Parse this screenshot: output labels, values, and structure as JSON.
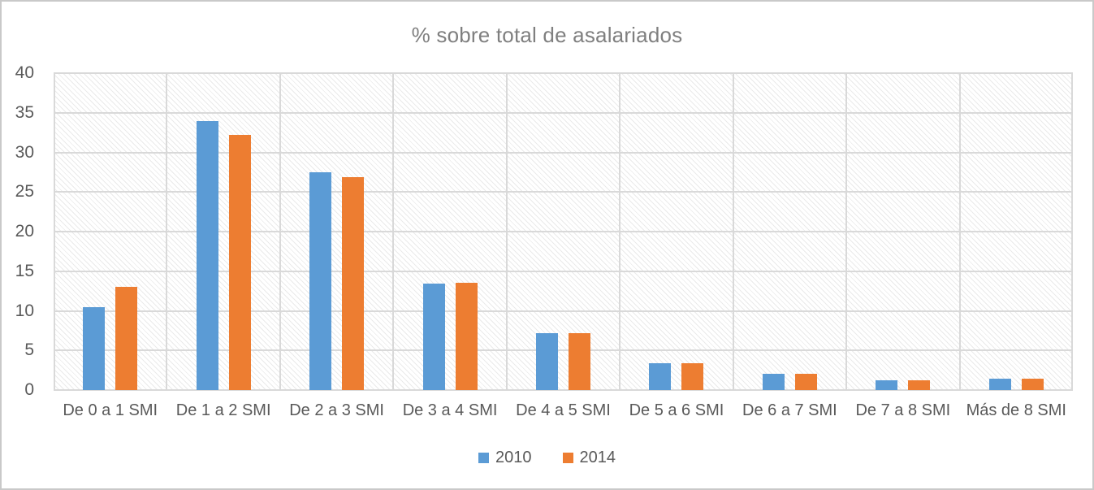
{
  "chart_data": {
    "type": "bar",
    "title": "% sobre total de asalariados",
    "categories": [
      "De 0 a 1 SMI",
      "De 1 a 2 SMI",
      "De 2 a 3 SMI",
      "De 3 a 4 SMI",
      "De 4 a 5 SMI",
      "De 5 a 6 SMI",
      "De 6 a 7 SMI",
      "De 7 a 8 SMI",
      "Más de 8 SMI"
    ],
    "series": [
      {
        "name": "2010",
        "color": "#5B9BD5",
        "values": [
          10.5,
          33.9,
          27.5,
          13.4,
          7.2,
          3.4,
          2.1,
          1.2,
          1.45
        ]
      },
      {
        "name": "2014",
        "color": "#ED7D31",
        "values": [
          13.0,
          32.2,
          26.9,
          13.5,
          7.2,
          3.4,
          2.1,
          1.2,
          1.45
        ]
      }
    ],
    "xlabel": "",
    "ylabel": "",
    "ylim": [
      0,
      40
    ],
    "ytick_step": 5,
    "grid": true,
    "legend_position": "bottom",
    "gridline_color": "#d9d9d9",
    "text_color": "#595959",
    "title_color": "#7f7f7f"
  }
}
